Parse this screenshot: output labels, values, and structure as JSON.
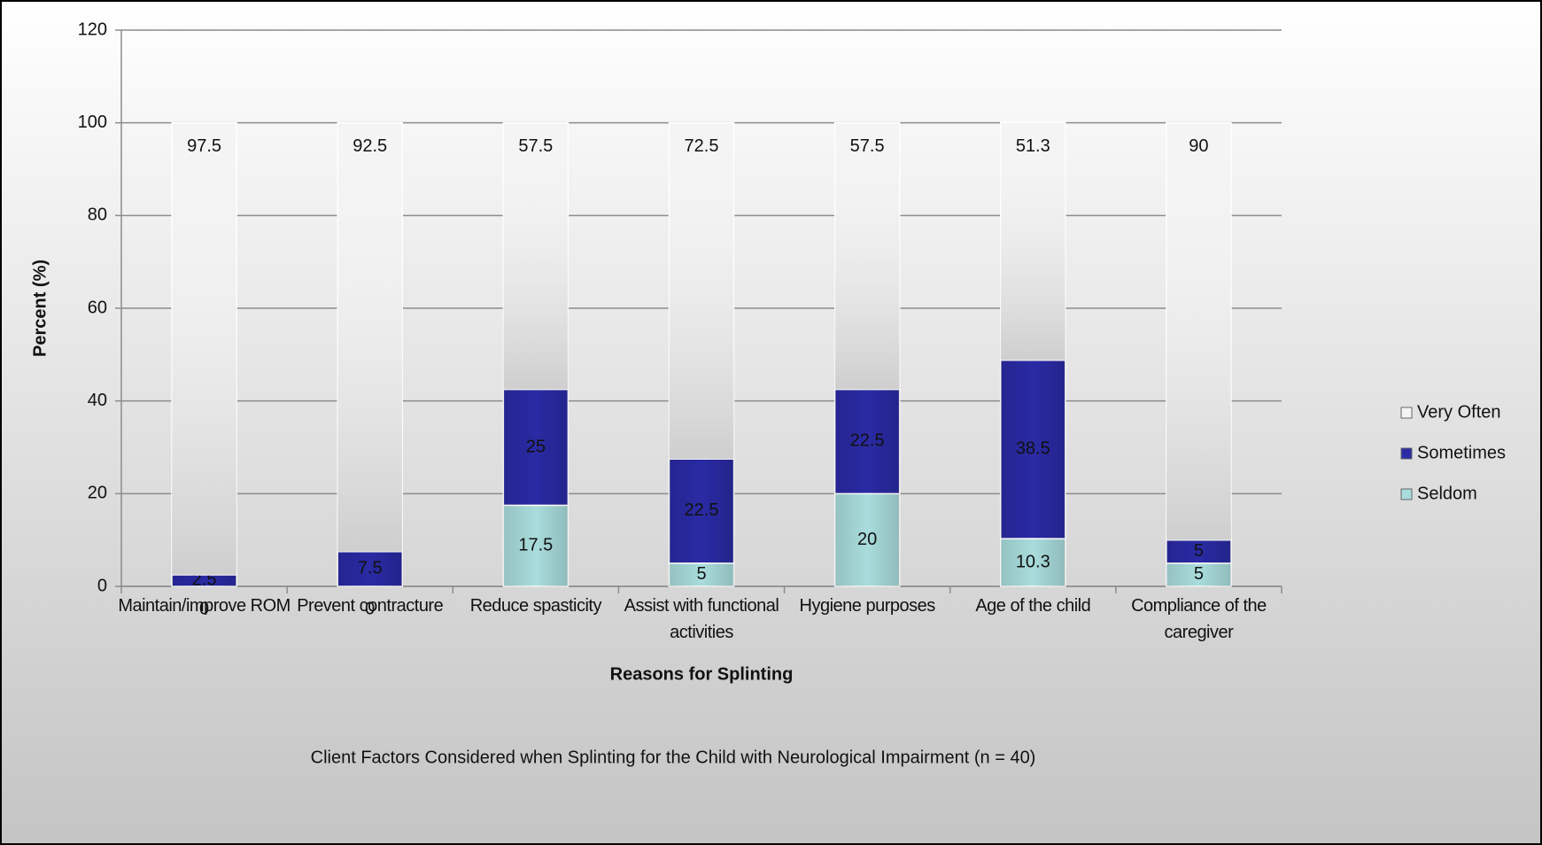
{
  "chart_data": {
    "type": "stacked_bar",
    "title": "Client Factors Considered when Splinting for the Child with Neurological Impairment (n = 40)",
    "x_label": "Reasons for Splinting",
    "y_label": "Percent (%)",
    "categories": [
      "Maintain/improve ROM",
      "Prevent contracture",
      "Reduce spasticity",
      "Assist with functional activities",
      "Hygiene purposes",
      "Age of the child",
      "Compliance of the caregiver"
    ],
    "series": [
      {
        "name": "Seldom",
        "color": "#a9dcdc",
        "values": [
          0,
          0,
          17.5,
          5,
          20,
          10.3,
          5
        ]
      },
      {
        "name": "Sometimes",
        "color": "#2a2aa4",
        "values": [
          2.5,
          7.5,
          25,
          22.5,
          22.5,
          38.5,
          5
        ]
      },
      {
        "name": "Very Often",
        "color": "#f4f4f4",
        "values": [
          97.5,
          92.5,
          57.5,
          72.5,
          57.5,
          51.3,
          90
        ]
      }
    ],
    "ylim": [
      0,
      120
    ],
    "yticks": [
      0,
      20,
      40,
      60,
      80,
      100,
      120
    ],
    "grid": true,
    "legend": "right"
  }
}
